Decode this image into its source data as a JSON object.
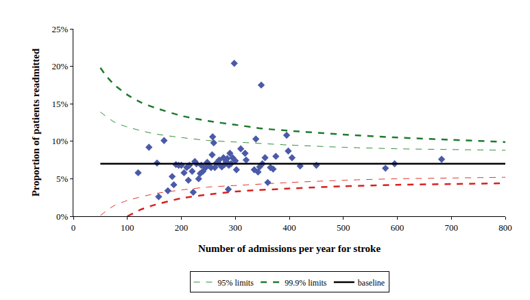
{
  "chart_data": {
    "type": "scatter",
    "x_label": "Number of admissions per year for stroke",
    "y_label": "Proportion of patients readmitted",
    "xlim": [
      0,
      800
    ],
    "xticks": [
      0,
      100,
      200,
      300,
      400,
      500,
      600,
      700,
      800
    ],
    "ylim": [
      0,
      25
    ],
    "yticks": [
      {
        "value": 0,
        "label": "0%"
      },
      {
        "value": 5,
        "label": "5%"
      },
      {
        "value": 10,
        "label": "10%"
      },
      {
        "value": 15,
        "label": "15%"
      },
      {
        "value": 20,
        "label": "20%"
      },
      {
        "value": 25,
        "label": "25%"
      }
    ],
    "grid": false,
    "legend": "bottom",
    "series": [
      {
        "name": "95% limits",
        "type": "line",
        "line_style": "thin_dash",
        "color": "#2e8b3a",
        "x": [
          50,
          75,
          100,
          150,
          200,
          250,
          300,
          400,
          500,
          600,
          700,
          800
        ],
        "values": [
          13.9,
          12.6,
          11.9,
          11.0,
          10.5,
          10.1,
          9.9,
          9.5,
          9.2,
          9.0,
          8.9,
          8.8
        ]
      },
      {
        "name": "99.9% limits",
        "type": "line",
        "line_style": "dash",
        "color": "#1e7a2e",
        "x": [
          50,
          60,
          75,
          100,
          125,
          150,
          200,
          250,
          300,
          350,
          400,
          500,
          600,
          700,
          800
        ],
        "values": [
          19.8,
          18.8,
          17.6,
          16.2,
          15.2,
          14.5,
          13.4,
          12.7,
          12.2,
          11.7,
          11.4,
          10.9,
          10.5,
          10.2,
          9.9
        ]
      },
      {
        "name": "baseline",
        "type": "line",
        "line_style": "solid",
        "color": "#000000",
        "x": [
          50,
          800
        ],
        "values": [
          7,
          7
        ]
      },
      {
        "name": "95% limits",
        "type": "line",
        "line_style": "thin_dash",
        "color": "#e0302a",
        "x": [
          50,
          75,
          100,
          150,
          200,
          250,
          300,
          400,
          500,
          600,
          700,
          800
        ],
        "values": [
          0.1,
          1.4,
          2.1,
          3.0,
          3.5,
          3.9,
          4.1,
          4.5,
          4.8,
          5.0,
          5.1,
          5.2
        ]
      },
      {
        "name": "99.9% limits",
        "type": "line",
        "line_style": "dash",
        "color": "#d92020",
        "x": [
          100,
          125,
          150,
          200,
          250,
          300,
          400,
          500,
          600,
          700,
          800
        ],
        "values": [
          0,
          0.9,
          1.5,
          2.4,
          2.9,
          3.3,
          3.7,
          4.0,
          4.2,
          4.3,
          4.4
        ]
      },
      {
        "type": "scatter",
        "marker": "diamond",
        "color": "#4a5aa8",
        "x": [
          120,
          140,
          155,
          158,
          168,
          175,
          183,
          186,
          190,
          195,
          200,
          205,
          210,
          213,
          215,
          220,
          222,
          225,
          228,
          232,
          235,
          237,
          240,
          245,
          248,
          252,
          255,
          257,
          258,
          260,
          262,
          265,
          270,
          272,
          275,
          278,
          280,
          283,
          285,
          287,
          288,
          290,
          292,
          295,
          298,
          300,
          302,
          310,
          318,
          320,
          335,
          338,
          342,
          345,
          348,
          350,
          355,
          360,
          365,
          370,
          375,
          395,
          398,
          405,
          420,
          450,
          578,
          595,
          682
        ],
        "values": [
          5.8,
          9.2,
          7.1,
          2.6,
          10.1,
          3.4,
          5.3,
          4.2,
          6.9,
          6.8,
          6.8,
          5.8,
          6.5,
          4.8,
          6.8,
          6.0,
          3.2,
          7.3,
          7.0,
          5.0,
          5.7,
          6.8,
          6.0,
          6.5,
          7.2,
          6.7,
          6.5,
          8.2,
          10.6,
          9.8,
          6.5,
          7.1,
          7.5,
          6.8,
          6.6,
          7.8,
          6.9,
          7.3,
          7.7,
          3.6,
          6.8,
          8.4,
          7.0,
          7.8,
          20.4,
          7.4,
          6.2,
          9.0,
          8.4,
          7.5,
          6.2,
          10.3,
          5.9,
          6.6,
          17.5,
          7.0,
          7.8,
          4.5,
          6.5,
          6.3,
          8.0,
          10.8,
          8.7,
          7.8,
          6.7,
          6.8,
          6.4,
          7.0,
          7.6
        ]
      }
    ]
  }
}
